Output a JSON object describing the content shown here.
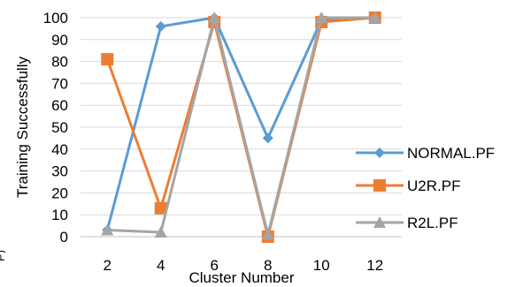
{
  "chart_data": {
    "type": "line",
    "title": "",
    "xlabel": "Cluster Number",
    "ylabel": "Training Successfully",
    "categories": [
      "2",
      "4",
      "6",
      "8",
      "10",
      "12"
    ],
    "ylim": [
      0,
      100
    ],
    "yticks": [
      "0",
      "10",
      "20",
      "30",
      "40",
      "50",
      "60",
      "70",
      "80",
      "90",
      "100"
    ],
    "grid": "horizontal",
    "legend_position": "right",
    "series": [
      {
        "name": "NORMAL.PF",
        "color": "#5b9bd5",
        "marker": "diamond",
        "values": [
          3,
          96,
          100,
          45,
          99,
          100
        ]
      },
      {
        "name": "U2R.PF",
        "color": "#ed7d31",
        "marker": "square",
        "values": [
          81,
          13,
          98,
          0,
          98,
          100
        ]
      },
      {
        "name": "R2L.PF",
        "color": "#a5a5a5",
        "marker": "triangle",
        "values": [
          3,
          2,
          100,
          1,
          100,
          100
        ]
      }
    ]
  },
  "margin_glyph": "P)"
}
